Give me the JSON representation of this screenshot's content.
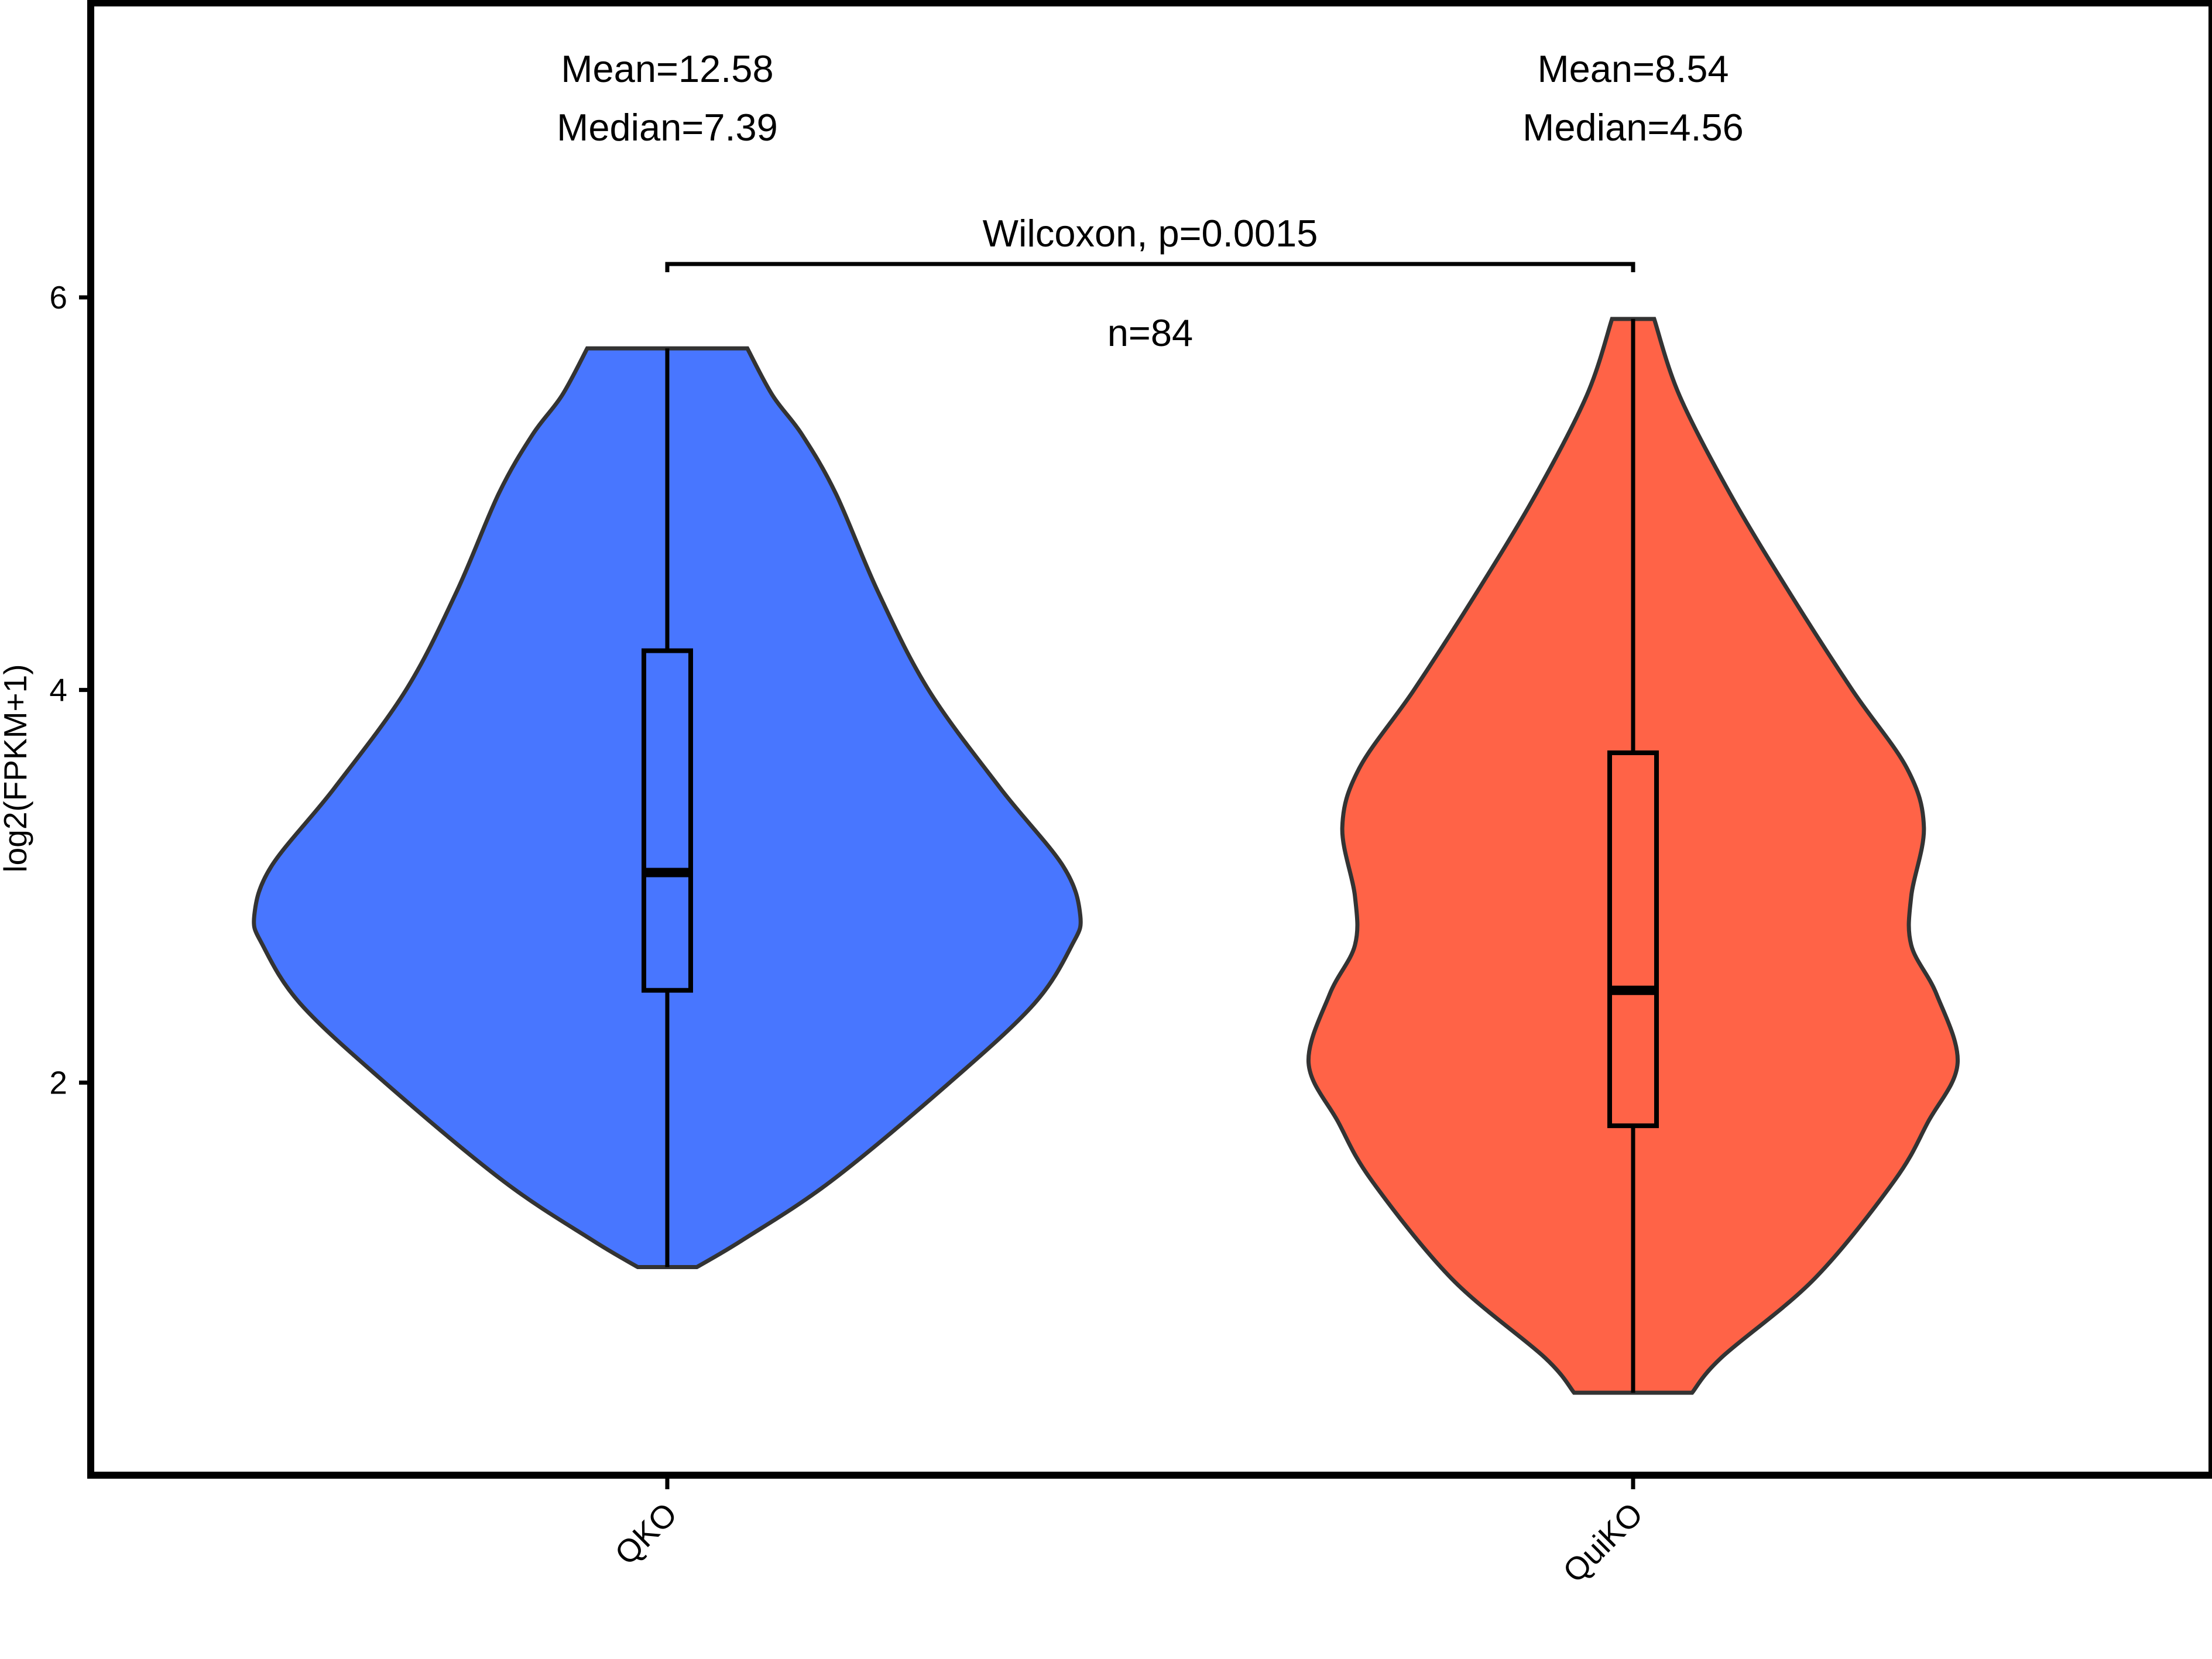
{
  "chart_data": {
    "type": "violin",
    "title": "",
    "xlabel": "",
    "ylabel": "log2(FPKM+1)",
    "ylim": [
      0.0,
      7.5
    ],
    "yticks": [
      2,
      4,
      6
    ],
    "categories": [
      "QKO",
      "QuiKO"
    ],
    "colors": {
      "QKO": "#4876FF",
      "QuiKO": "#FF6347"
    },
    "groups": [
      {
        "name": "QKO",
        "mean_label": "Mean=12.58",
        "median_label": "Median=7.39",
        "box": {
          "q1": 2.47,
          "median": 3.07,
          "q3": 4.2,
          "whisker_low": 1.06,
          "whisker_high": 5.74
        },
        "density": [
          {
            "y": 1.06,
            "hw": 0.07
          },
          {
            "y": 1.2,
            "hw": 0.18
          },
          {
            "y": 1.5,
            "hw": 0.39
          },
          {
            "y": 2.0,
            "hw": 0.67
          },
          {
            "y": 2.4,
            "hw": 0.87
          },
          {
            "y": 2.7,
            "hw": 0.96
          },
          {
            "y": 2.85,
            "hw": 0.98
          },
          {
            "y": 3.1,
            "hw": 0.94
          },
          {
            "y": 3.5,
            "hw": 0.79
          },
          {
            "y": 4.0,
            "hw": 0.62
          },
          {
            "y": 4.5,
            "hw": 0.5
          },
          {
            "y": 5.0,
            "hw": 0.4
          },
          {
            "y": 5.3,
            "hw": 0.32
          },
          {
            "y": 5.5,
            "hw": 0.25
          },
          {
            "y": 5.74,
            "hw": 0.19
          }
        ]
      },
      {
        "name": "QuiKO",
        "mean_label": "Mean=8.54",
        "median_label": "Median=4.56",
        "box": {
          "q1": 1.78,
          "median": 2.47,
          "q3": 3.68,
          "whisker_low": 0.42,
          "whisker_high": 5.89
        },
        "density": [
          {
            "y": 0.42,
            "hw": 0.14
          },
          {
            "y": 0.6,
            "hw": 0.21
          },
          {
            "y": 1.0,
            "hw": 0.43
          },
          {
            "y": 1.5,
            "hw": 0.62
          },
          {
            "y": 1.8,
            "hw": 0.7
          },
          {
            "y": 2.1,
            "hw": 0.77
          },
          {
            "y": 2.45,
            "hw": 0.72
          },
          {
            "y": 2.7,
            "hw": 0.66
          },
          {
            "y": 2.95,
            "hw": 0.66
          },
          {
            "y": 3.3,
            "hw": 0.69
          },
          {
            "y": 3.6,
            "hw": 0.65
          },
          {
            "y": 4.0,
            "hw": 0.52
          },
          {
            "y": 4.5,
            "hw": 0.37
          },
          {
            "y": 5.0,
            "hw": 0.23
          },
          {
            "y": 5.5,
            "hw": 0.11
          },
          {
            "y": 5.89,
            "hw": 0.05
          }
        ]
      }
    ],
    "comparison": {
      "label": "Wilcoxon, p=0.0015",
      "between": [
        "QKO",
        "QuiKO"
      ],
      "y": 6.17
    },
    "n_label": "n=84"
  }
}
